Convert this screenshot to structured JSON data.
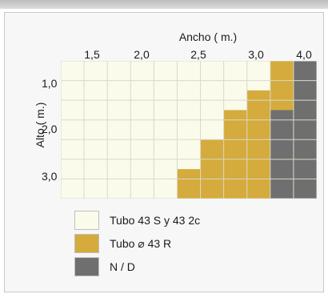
{
  "chart_data": {
    "type": "heatmap",
    "title": "Ancho ( m.)",
    "xlabel": "Ancho ( m.)",
    "ylabel": "Alto ( m.)",
    "x_ticks": [
      "1,5",
      "2,0",
      "2,5",
      "3,0",
      "4,0"
    ],
    "y_ticks": [
      "1,0",
      "2,0",
      "3,0"
    ],
    "x_cells": [
      "1,4",
      "1,6",
      "1,8",
      "2,0",
      "2,2",
      "2,4",
      "2,6",
      "2,8",
      "3,0",
      "3,4",
      "3,6"
    ],
    "y_cells": [
      "0,6",
      "0,8",
      "1,0",
      "1,2",
      "1,4",
      "1,6",
      "1,8",
      "2,0",
      "2,2",
      "2,4",
      "2,6",
      "2,8",
      "3,0",
      "3,2"
    ],
    "cell_codes": [
      [
        0,
        0,
        0,
        0,
        0,
        0,
        0,
        0,
        0,
        1,
        2
      ],
      [
        0,
        0,
        0,
        0,
        0,
        0,
        0,
        0,
        0,
        1,
        2
      ],
      [
        0,
        0,
        0,
        0,
        0,
        0,
        0,
        0,
        0,
        1,
        2
      ],
      [
        0,
        0,
        0,
        0,
        0,
        0,
        0,
        0,
        1,
        1,
        2
      ],
      [
        0,
        0,
        0,
        0,
        0,
        0,
        0,
        0,
        1,
        1,
        2
      ],
      [
        0,
        0,
        0,
        0,
        0,
        0,
        0,
        1,
        1,
        2,
        2
      ],
      [
        0,
        0,
        0,
        0,
        0,
        0,
        0,
        1,
        1,
        2,
        2
      ],
      [
        0,
        0,
        0,
        0,
        0,
        0,
        0,
        1,
        1,
        2,
        2
      ],
      [
        0,
        0,
        0,
        0,
        0,
        0,
        1,
        1,
        1,
        2,
        2
      ],
      [
        0,
        0,
        0,
        0,
        0,
        0,
        1,
        1,
        1,
        2,
        2
      ],
      [
        0,
        0,
        0,
        0,
        0,
        0,
        1,
        1,
        1,
        2,
        2
      ],
      [
        0,
        0,
        0,
        0,
        0,
        1,
        1,
        1,
        1,
        2,
        2
      ],
      [
        0,
        0,
        0,
        0,
        0,
        1,
        1,
        1,
        1,
        2,
        2
      ],
      [
        0,
        0,
        0,
        0,
        0,
        1,
        1,
        1,
        1,
        2,
        2
      ]
    ],
    "categories": [
      "Tubo  43 S y 43 2c",
      "Tubo  ⌀ 43 R",
      "N / D"
    ],
    "colors": [
      "#fbfbec",
      "#d4ab3c",
      "#6f6f6f"
    ],
    "grid": true,
    "legend_position": "bottom"
  }
}
